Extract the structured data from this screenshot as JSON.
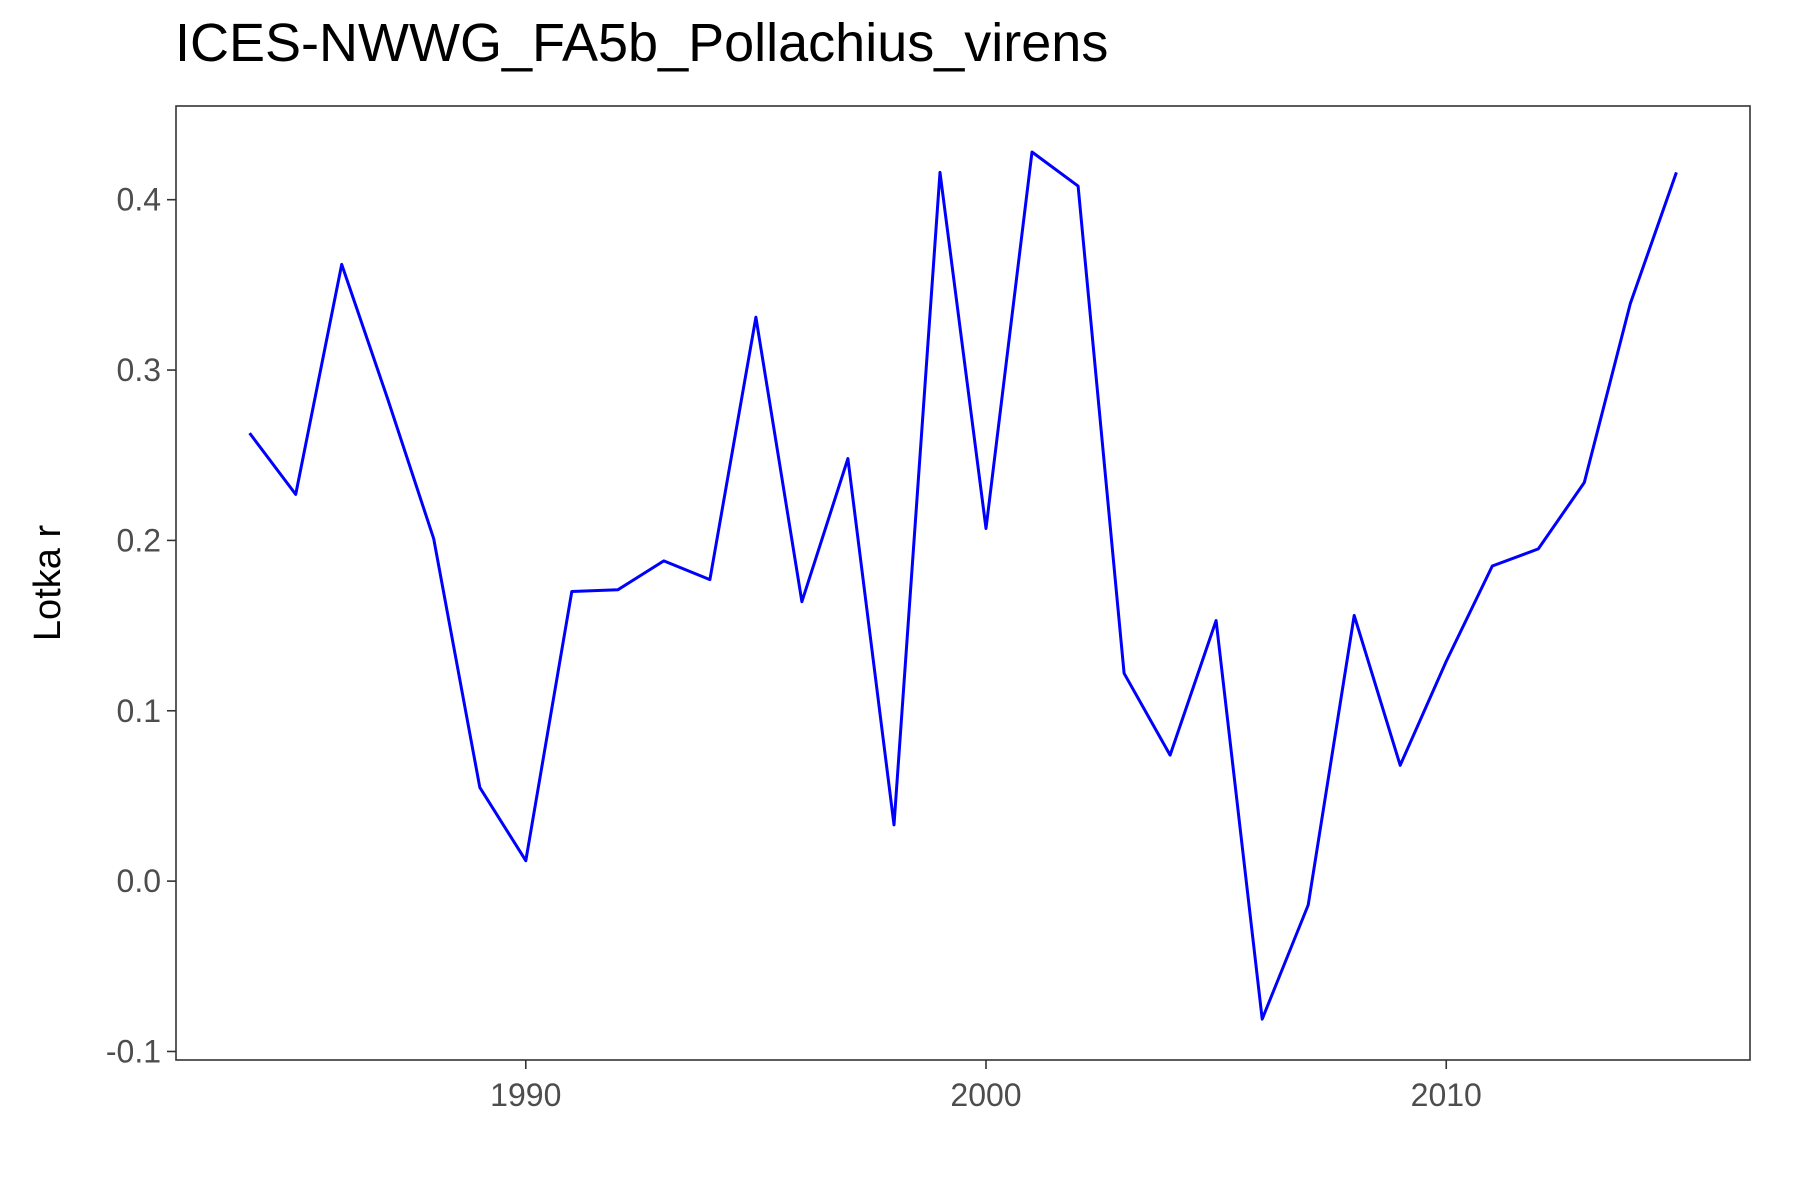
{
  "chart_data": {
    "type": "line",
    "title": "ICES-NWWG_FA5b_Pollachius_virens",
    "xlabel": "",
    "ylabel": "Lotka r",
    "xlim": [
      1982.4,
      2016.6
    ],
    "ylim": [
      -0.105,
      0.455
    ],
    "x_ticks": [
      1990,
      2000,
      2010
    ],
    "x_tick_labels": [
      "1990",
      "2000",
      "2010"
    ],
    "y_ticks": [
      -0.1,
      0.0,
      0.1,
      0.2,
      0.3,
      0.4
    ],
    "y_tick_labels": [
      "-0.1",
      "0.0",
      "0.1",
      "0.2",
      "0.3",
      "0.4"
    ],
    "grid": false,
    "series": [
      {
        "color": "#0000ff",
        "x": [
          1984,
          1985,
          1986,
          1987,
          1988,
          1989,
          1990,
          1991,
          1992,
          1993,
          1994,
          1995,
          1996,
          1997,
          1998,
          1999,
          2000,
          2001,
          2002,
          2003,
          2004,
          2005,
          2006,
          2007,
          2008,
          2009,
          2010,
          2011,
          2012,
          2013,
          2014,
          2015
        ],
        "y": [
          0.263,
          0.227,
          0.362,
          0.283,
          0.201,
          0.055,
          0.012,
          0.17,
          0.171,
          0.188,
          0.177,
          0.331,
          0.164,
          0.248,
          0.033,
          0.416,
          0.207,
          0.428,
          0.408,
          0.122,
          0.074,
          0.153,
          -0.081,
          -0.014,
          0.156,
          0.068,
          0.129,
          0.185,
          0.195,
          0.234,
          0.339,
          0.416
        ]
      }
    ]
  }
}
